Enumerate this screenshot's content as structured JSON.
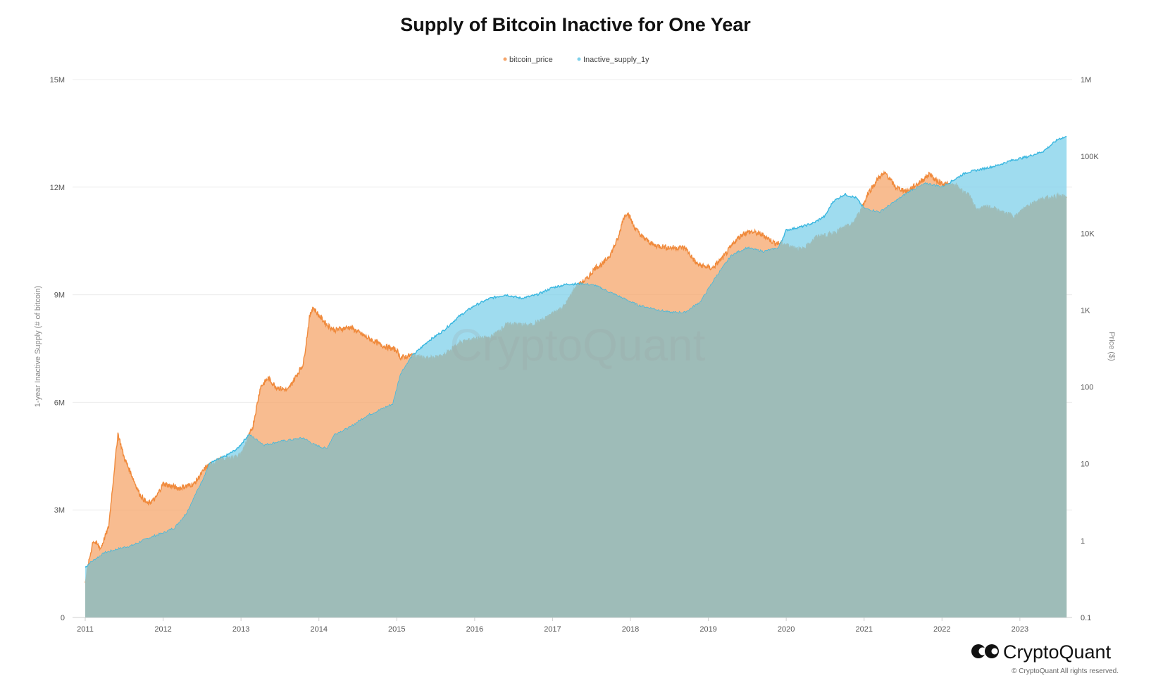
{
  "chart_data": {
    "type": "area",
    "title": "Supply of Bitcoin Inactive for One Year",
    "legend": {
      "placement": "top-center",
      "items": [
        "bitcoin_price",
        "Inactive_supply_1y"
      ]
    },
    "x_ticks": [
      "2011",
      "2012",
      "2013",
      "2014",
      "2015",
      "2016",
      "2017",
      "2018",
      "2019",
      "2020",
      "2021",
      "2022",
      "2023"
    ],
    "xlim": [
      "2011-01",
      "2023-08"
    ],
    "y_left": {
      "label": "1-year Inactive Supply (# of bitcoin)",
      "ylim": [
        0,
        15000000
      ],
      "ticks": [
        "0",
        "3M",
        "6M",
        "9M",
        "12M",
        "15M"
      ]
    },
    "y_right": {
      "label": "Price ($)",
      "scale": "log",
      "ylim": [
        0.1,
        1000000
      ],
      "ticks": [
        "0.1",
        "1",
        "10",
        "100",
        "1K",
        "10K",
        "100K",
        "1M"
      ]
    },
    "grid": true,
    "colors": {
      "bitcoin_price": "#f5a56b",
      "Inactive_supply_1y": "#7fd0ea",
      "overlap": "#9ebcb8"
    },
    "series": [
      {
        "name": "Inactive_supply_1y",
        "axis": "left",
        "x": [
          2011.0,
          2011.08,
          2011.25,
          2011.5,
          2011.6,
          2011.8,
          2012.0,
          2012.15,
          2012.3,
          2012.5,
          2012.6,
          2012.8,
          2012.95,
          2013.1,
          2013.3,
          2013.5,
          2013.8,
          2013.95,
          2014.1,
          2014.2,
          2014.4,
          2014.6,
          2014.8,
          2014.95,
          2015.05,
          2015.2,
          2015.4,
          2015.6,
          2015.8,
          2016.0,
          2016.2,
          2016.4,
          2016.6,
          2016.8,
          2017.0,
          2017.2,
          2017.4,
          2017.55,
          2017.7,
          2017.9,
          2018.1,
          2018.3,
          2018.5,
          2018.7,
          2018.9,
          2019.1,
          2019.3,
          2019.5,
          2019.7,
          2019.9,
          2020.0,
          2020.2,
          2020.35,
          2020.5,
          2020.6,
          2020.75,
          2020.9,
          2021.0,
          2021.2,
          2021.4,
          2021.6,
          2021.8,
          2022.0,
          2022.15,
          2022.3,
          2022.5,
          2022.7,
          2022.9,
          2023.1,
          2023.3,
          2023.5,
          2023.6
        ],
        "values": [
          1400000,
          1550000,
          1800000,
          1950000,
          2000000,
          2200000,
          2350000,
          2500000,
          2900000,
          3800000,
          4300000,
          4500000,
          4700000,
          5100000,
          4800000,
          4900000,
          5000000,
          4800000,
          4700000,
          5100000,
          5300000,
          5600000,
          5800000,
          5950000,
          6800000,
          7300000,
          7700000,
          8000000,
          8400000,
          8700000,
          8900000,
          9000000,
          8900000,
          9000000,
          9200000,
          9300000,
          9300000,
          9250000,
          9100000,
          8900000,
          8700000,
          8600000,
          8500000,
          8500000,
          8800000,
          9500000,
          10100000,
          10300000,
          10200000,
          10300000,
          10800000,
          10900000,
          11000000,
          11200000,
          11600000,
          11800000,
          11700000,
          11400000,
          11300000,
          11600000,
          11900000,
          12100000,
          12000000,
          12200000,
          12400000,
          12500000,
          12600000,
          12750000,
          12850000,
          13000000,
          13350000,
          13400000
        ]
      },
      {
        "name": "bitcoin_price",
        "axis": "right",
        "x": [
          2011.0,
          2011.1,
          2011.2,
          2011.3,
          2011.42,
          2011.5,
          2011.6,
          2011.7,
          2011.8,
          2011.9,
          2012.0,
          2012.2,
          2012.4,
          2012.55,
          2012.7,
          2012.9,
          2013.0,
          2013.15,
          2013.25,
          2013.35,
          2013.45,
          2013.6,
          2013.8,
          2013.88,
          2013.92,
          2014.0,
          2014.1,
          2014.2,
          2014.4,
          2014.6,
          2014.8,
          2015.0,
          2015.05,
          2015.2,
          2015.4,
          2015.6,
          2015.8,
          2016.0,
          2016.2,
          2016.4,
          2016.5,
          2016.7,
          2016.9,
          2017.0,
          2017.15,
          2017.3,
          2017.45,
          2017.55,
          2017.65,
          2017.75,
          2017.85,
          2017.9,
          2017.96,
          2018.05,
          2018.15,
          2018.3,
          2018.5,
          2018.7,
          2018.85,
          2018.95,
          2019.05,
          2019.2,
          2019.35,
          2019.45,
          2019.55,
          2019.7,
          2019.85,
          2019.95,
          2020.2,
          2020.4,
          2020.55,
          2020.7,
          2020.85,
          2020.95,
          2021.05,
          2021.2,
          2021.28,
          2021.4,
          2021.55,
          2021.7,
          2021.85,
          2021.9,
          2022.0,
          2022.2,
          2022.35,
          2022.45,
          2022.6,
          2022.8,
          2022.95,
          2023.1,
          2023.3,
          2023.5,
          2023.6
        ],
        "values": [
          0.3,
          1.0,
          0.8,
          1.5,
          25,
          12,
          7,
          4,
          3,
          3.5,
          5.5,
          4.8,
          5.5,
          9,
          11,
          12,
          13,
          30,
          100,
          130,
          100,
          90,
          200,
          800,
          1100,
          850,
          650,
          550,
          600,
          450,
          350,
          300,
          240,
          260,
          230,
          250,
          370,
          420,
          430,
          630,
          650,
          620,
          750,
          900,
          1100,
          2000,
          2600,
          3600,
          4000,
          5500,
          9000,
          15000,
          19000,
          12000,
          9000,
          7000,
          6500,
          6500,
          4000,
          3700,
          3500,
          5000,
          8000,
          10000,
          10500,
          9500,
          7500,
          7300,
          6000,
          9000,
          9500,
          11000,
          13000,
          19000,
          33000,
          55000,
          60000,
          40000,
          35000,
          45000,
          60000,
          50000,
          45000,
          40000,
          30000,
          20000,
          22000,
          18000,
          16500,
          23000,
          28000,
          30000,
          29000
        ]
      }
    ]
  },
  "watermark": "CryptoQuant",
  "brand": {
    "name": "CryptoQuant",
    "copyright": "© CryptoQuant All rights reserved."
  }
}
